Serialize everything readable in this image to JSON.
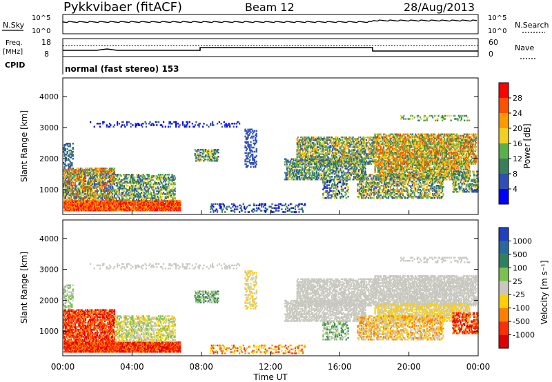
{
  "header": {
    "station": "Pykkvibaer (fitACF)",
    "beam": "Beam 12",
    "date": "28/Aug/2013"
  },
  "top_panels": {
    "nsky_label": "N.Sky",
    "nsearch_label": "N.Search",
    "nsky_ticks_left": [
      "10^5",
      "10^0"
    ],
    "nsearch_ticks_right": [
      "10^5",
      "10^0"
    ],
    "freq_label": "Freq.",
    "freq_unit": "[MHz]",
    "freq_ticks": [
      "18",
      "8"
    ],
    "nave_label": "Nave",
    "nave_ticks": [
      "60",
      "0"
    ],
    "cpid_label": "CPID",
    "cpid_text": "normal (fast stereo) 153"
  },
  "chart_data": [
    {
      "type": "heatmap",
      "name": "power",
      "ylabel": "Slant Range [km]",
      "yticks": [
        "1000",
        "2000",
        "3000",
        "4000"
      ],
      "ylim": [
        200,
        4600
      ],
      "colorbar_label": "Power [dB]",
      "colorbar_ticks": [
        "4",
        "8",
        "12",
        "16",
        "20",
        "24",
        "28"
      ],
      "colorbar_colors": [
        "#0000ff",
        "#2f4fb4",
        "#3a7f5a",
        "#59b14a",
        "#f0d020",
        "#ff9a00",
        "#ff5000",
        "#ff0000"
      ]
    },
    {
      "type": "heatmap",
      "name": "velocity",
      "ylabel": "Slant Range [km]",
      "yticks": [
        "1000",
        "2000",
        "3000",
        "4000"
      ],
      "ylim": [
        200,
        4600
      ],
      "colorbar_label": "Velocity [m s⁻¹]",
      "colorbar_ticks": [
        "1000",
        "500",
        "100",
        "25",
        "-25",
        "-100",
        "-500",
        "-1000"
      ],
      "colorbar_colors": [
        "#2040c0",
        "#2a6a9a",
        "#2f8060",
        "#7cc050",
        "#c8c8c0",
        "#ffd000",
        "#ff8000",
        "#ff3000",
        "#e00000"
      ]
    }
  ],
  "xaxis": {
    "ticks": [
      "00:00",
      "04:00",
      "08:00",
      "12:00",
      "16:00",
      "20:00",
      "00:00"
    ],
    "label": "Time UT"
  }
}
